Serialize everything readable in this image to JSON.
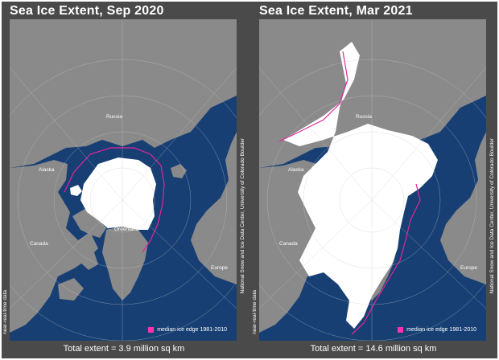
{
  "panels": [
    {
      "title": "Sea Ice Extent, Sep 2020",
      "total": "Total extent = 3.9 million sq km",
      "near_realtime": "near-real-time data",
      "credit": "National Snow and Ice Data Center, University of Colorado Boulder",
      "legend": "median ice edge 1981-2010",
      "labels": {
        "russia": "Russia",
        "alaska": "Alaska",
        "canada": "Canada",
        "greenland": "Greenland",
        "europe": "Europe"
      },
      "ice_extent_million_sq_km": 3.9
    },
    {
      "title": "Sea Ice Extent, Mar 2021",
      "total": "Total extent = 14.6 million sq km",
      "near_realtime": "near-real-time data",
      "credit": "National Snow and Ice Data Center, University of Colorado Boulder",
      "legend": "median ice edge 1981-2010",
      "labels": {
        "russia": "Russia",
        "alaska": "Alaska",
        "canada": "Canada",
        "greenland": "Greenland",
        "europe": "Europe"
      },
      "ice_extent_million_sq_km": 14.6
    }
  ],
  "colors": {
    "ocean": "#173f73",
    "land": "#8a8a8a",
    "ice": "#ffffff",
    "median_edge": "#e0279a",
    "background": "#4a4a4a"
  }
}
